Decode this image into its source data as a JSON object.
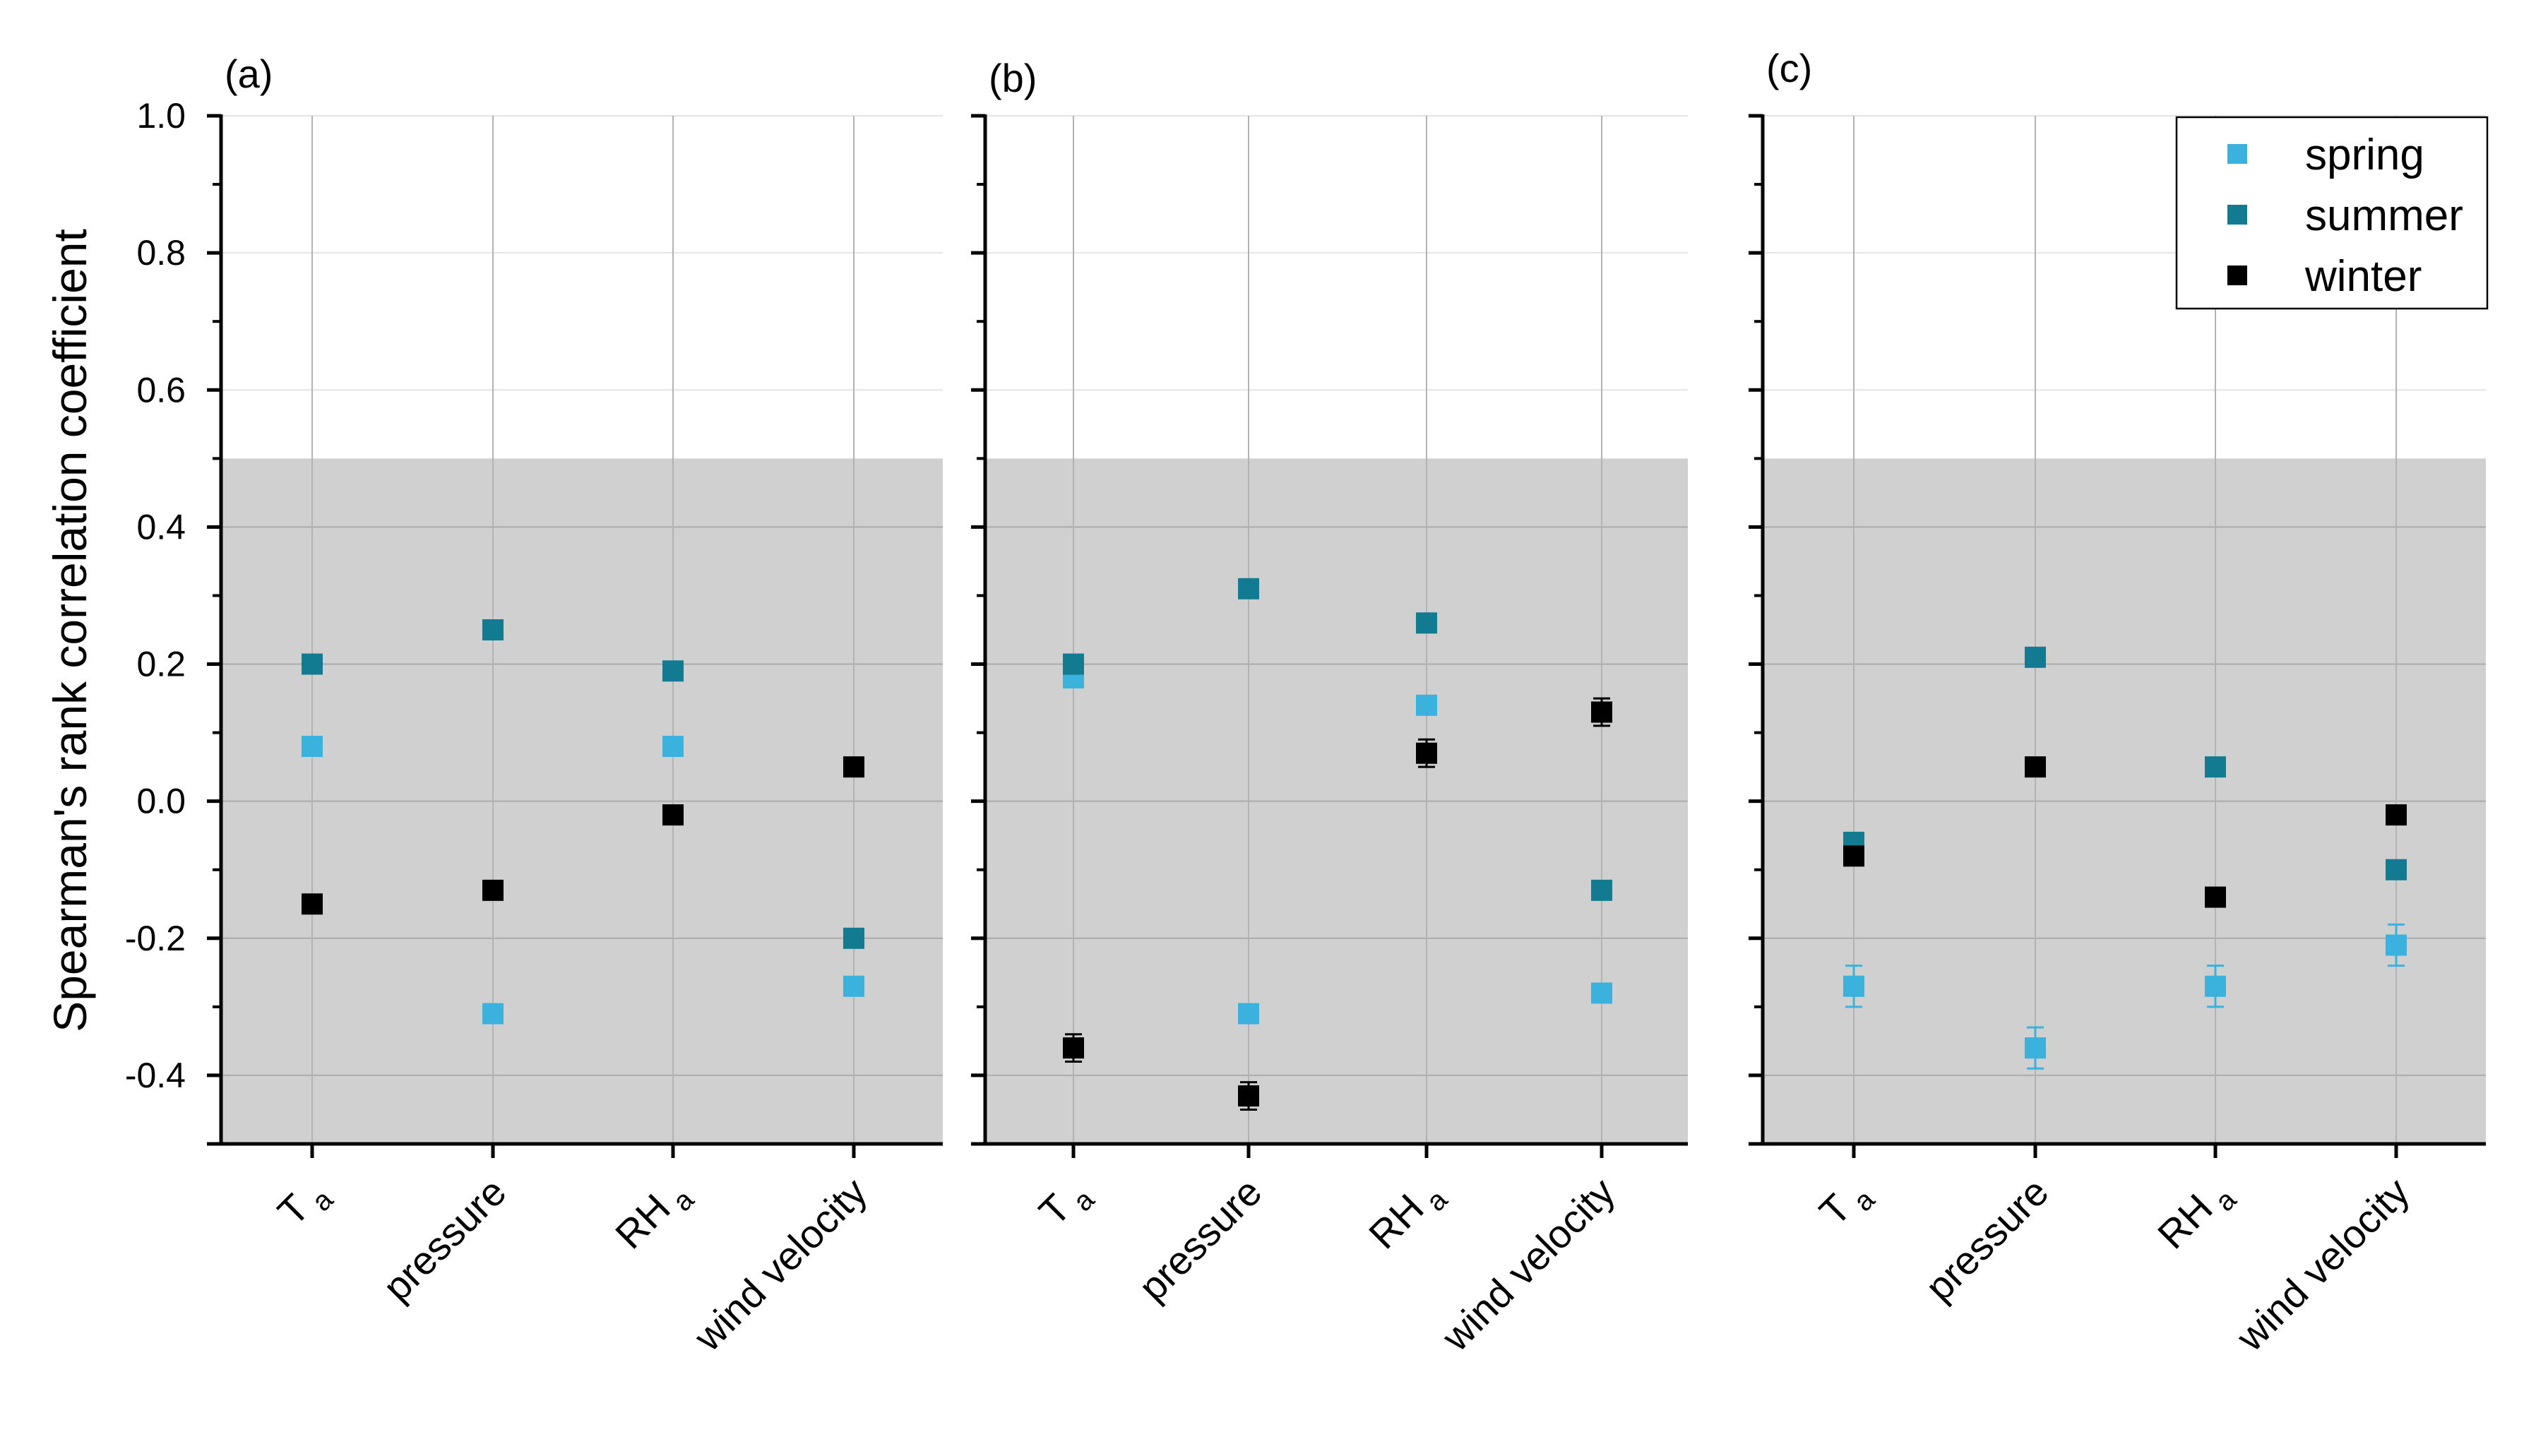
{
  "chart_data": {
    "type": "scatter",
    "ylabel": "Spearman's rank correlation coefficient",
    "ylim": [
      -0.5,
      1.0
    ],
    "yticks": [
      "1.0",
      "0.8",
      "0.6",
      "0.4",
      "0.2",
      "0.0",
      "-0.2",
      "-0.4"
    ],
    "shaded_region": {
      "from": -0.5,
      "to": 0.5,
      "color": "#d0d0d0"
    },
    "categories": [
      {
        "base": "T",
        "sub": "a"
      },
      {
        "base": "pressure",
        "sub": ""
      },
      {
        "base": "RH",
        "sub": "a"
      },
      {
        "base": "wind velocity",
        "sub": ""
      }
    ],
    "legend": {
      "position": "top-right",
      "entries": [
        {
          "name": "spring",
          "color": "#3bb2dd"
        },
        {
          "name": "summer",
          "color": "#127a91"
        },
        {
          "name": "winter",
          "color": "#000000"
        }
      ]
    },
    "panels": [
      {
        "label": "(a)",
        "series": [
          {
            "name": "spring",
            "color": "#3bb2dd",
            "values": [
              0.08,
              -0.31,
              0.08,
              -0.27
            ],
            "errors": [
              0.01,
              0.01,
              0.01,
              0.01
            ]
          },
          {
            "name": "summer",
            "color": "#127a91",
            "values": [
              0.2,
              0.25,
              0.19,
              -0.2
            ],
            "errors": [
              0.01,
              0.01,
              0.01,
              0.01
            ]
          },
          {
            "name": "winter",
            "color": "#000000",
            "values": [
              -0.15,
              -0.13,
              -0.02,
              0.05
            ],
            "errors": [
              0.01,
              0.01,
              0.01,
              0.01
            ]
          }
        ]
      },
      {
        "label": "(b)",
        "series": [
          {
            "name": "spring",
            "color": "#3bb2dd",
            "values": [
              0.18,
              -0.31,
              0.14,
              -0.28
            ],
            "errors": [
              0.01,
              0.01,
              0.01,
              0.01
            ]
          },
          {
            "name": "summer",
            "color": "#127a91",
            "values": [
              0.2,
              0.31,
              0.26,
              -0.13
            ],
            "errors": [
              0.01,
              0.01,
              0.01,
              0.01
            ]
          },
          {
            "name": "winter",
            "color": "#000000",
            "values": [
              -0.36,
              -0.43,
              0.07,
              0.13
            ],
            "errors": [
              0.02,
              0.02,
              0.02,
              0.02
            ]
          }
        ]
      },
      {
        "label": "(c)",
        "series": [
          {
            "name": "spring",
            "color": "#3bb2dd",
            "values": [
              -0.27,
              -0.36,
              -0.27,
              -0.21
            ],
            "errors": [
              0.03,
              0.03,
              0.03,
              0.03
            ]
          },
          {
            "name": "summer",
            "color": "#127a91",
            "values": [
              -0.06,
              0.21,
              0.05,
              -0.1
            ],
            "errors": [
              0.01,
              0.01,
              0.01,
              0.01
            ]
          },
          {
            "name": "winter",
            "color": "#000000",
            "values": [
              -0.08,
              0.05,
              -0.14,
              -0.02
            ],
            "errors": [
              0.01,
              0.01,
              0.01,
              0.01
            ]
          }
        ]
      }
    ]
  }
}
